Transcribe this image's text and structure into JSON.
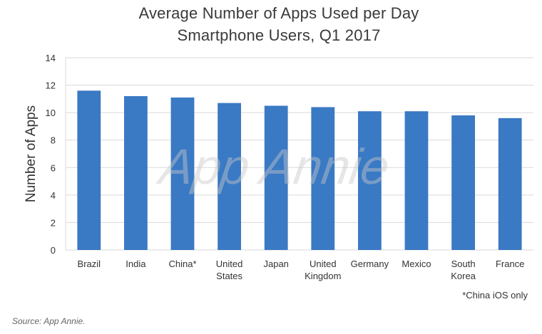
{
  "chart_data": {
    "type": "bar",
    "title": "Average Number of Apps Used per Day",
    "subtitle": "Smartphone Users, Q1 2017",
    "xlabel": "",
    "ylabel": "Number of Apps",
    "ylim": [
      0,
      14
    ],
    "yticks": [
      0,
      2,
      4,
      6,
      8,
      10,
      12,
      14
    ],
    "grid": true,
    "categories": [
      [
        "Brazil"
      ],
      [
        "India"
      ],
      [
        "China*"
      ],
      [
        "United",
        "States"
      ],
      [
        "Japan"
      ],
      [
        "United",
        "Kingdom"
      ],
      [
        "Germany"
      ],
      [
        "Mexico"
      ],
      [
        "South",
        "Korea"
      ],
      [
        "France"
      ]
    ],
    "values": [
      11.6,
      11.2,
      11.1,
      10.7,
      10.5,
      10.4,
      10.1,
      10.1,
      9.8,
      9.6
    ],
    "bar_color": "#3a79c4",
    "gridline_color": "#d9d9d9",
    "watermark": "App Annie",
    "footnote": "*China iOS only"
  },
  "source_text": "Source: App Annie."
}
